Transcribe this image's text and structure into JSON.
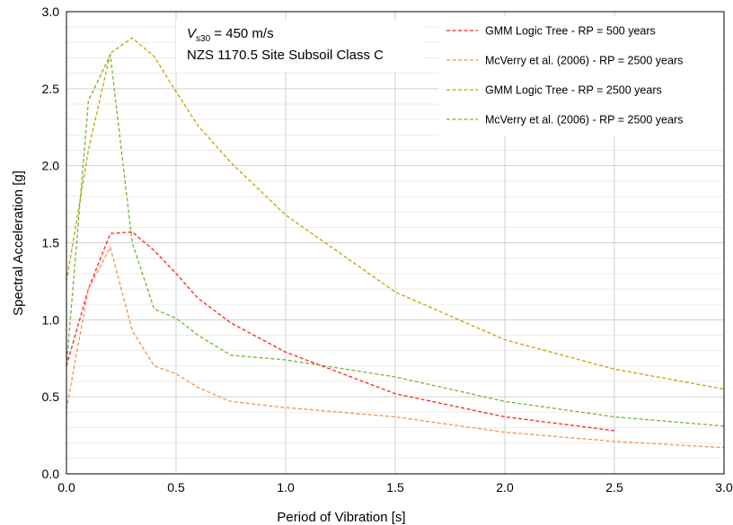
{
  "chart_data": {
    "type": "line",
    "xlabel": "Period of Vibration [s]",
    "ylabel": "Spectral Acceleration [g]",
    "xlim": [
      0,
      3.0
    ],
    "ylim": [
      0,
      3.0
    ],
    "xticks": [
      0,
      0.5,
      1.0,
      1.5,
      2.0,
      2.5,
      3.0
    ],
    "xtick_labels": [
      "0.0",
      "0.5",
      "1.0",
      "1.5",
      "2.0",
      "2.5",
      "3.0"
    ],
    "yticks": [
      0,
      0.5,
      1.0,
      1.5,
      2.0,
      2.5,
      3.0
    ],
    "ytick_labels": [
      "0.0",
      "0.5",
      "1.0",
      "1.5",
      "2.0",
      "2.5",
      "3.0"
    ],
    "grid": true,
    "legend": "top-right",
    "annotation": {
      "vs_symbol": "V",
      "vs_subscript": "s30",
      "vs_value": " = 450 m/s",
      "site_class": "NZS 1170.5 Site Subsoil Class C"
    },
    "series": [
      {
        "name": "GMM Logic Tree - RP = 500 years",
        "color": "#ff2020",
        "x": [
          0,
          0.1,
          0.2,
          0.3,
          0.4,
          0.5,
          0.6,
          0.75,
          1.0,
          1.5,
          2.0,
          2.5
        ],
        "y": [
          0.7,
          1.2,
          1.56,
          1.57,
          1.45,
          1.3,
          1.14,
          0.98,
          0.79,
          0.52,
          0.37,
          0.28
        ]
      },
      {
        "name": "McVerry et al. (2006) - RP = 2500 years",
        "color": "#f4934a",
        "x": [
          0,
          0.1,
          0.2,
          0.3,
          0.4,
          0.5,
          0.6,
          0.75,
          1.0,
          1.5,
          2.0,
          2.5,
          3.0
        ],
        "y": [
          0.42,
          1.2,
          1.47,
          0.93,
          0.7,
          0.65,
          0.56,
          0.47,
          0.43,
          0.37,
          0.27,
          0.21,
          0.17
        ]
      },
      {
        "name": "GMM Logic Tree - RP = 2500 years",
        "color": "#c9a000",
        "x": [
          0,
          0.1,
          0.2,
          0.3,
          0.4,
          0.5,
          0.6,
          0.75,
          1.0,
          1.5,
          2.0,
          2.5,
          3.0
        ],
        "y": [
          1.25,
          2.1,
          2.73,
          2.83,
          2.71,
          2.48,
          2.26,
          2.02,
          1.68,
          1.18,
          0.87,
          0.68,
          0.55
        ]
      },
      {
        "name": "McVerry et al. (2006) - RP = 2500 years",
        "color": "#6fb63a",
        "x": [
          0,
          0.1,
          0.2,
          0.3,
          0.4,
          0.5,
          0.6,
          0.75,
          1.0,
          1.5,
          2.0,
          2.5,
          3.0
        ],
        "y": [
          0.7,
          2.42,
          2.72,
          1.5,
          1.07,
          1.01,
          0.9,
          0.77,
          0.74,
          0.63,
          0.47,
          0.37,
          0.31
        ]
      }
    ]
  }
}
